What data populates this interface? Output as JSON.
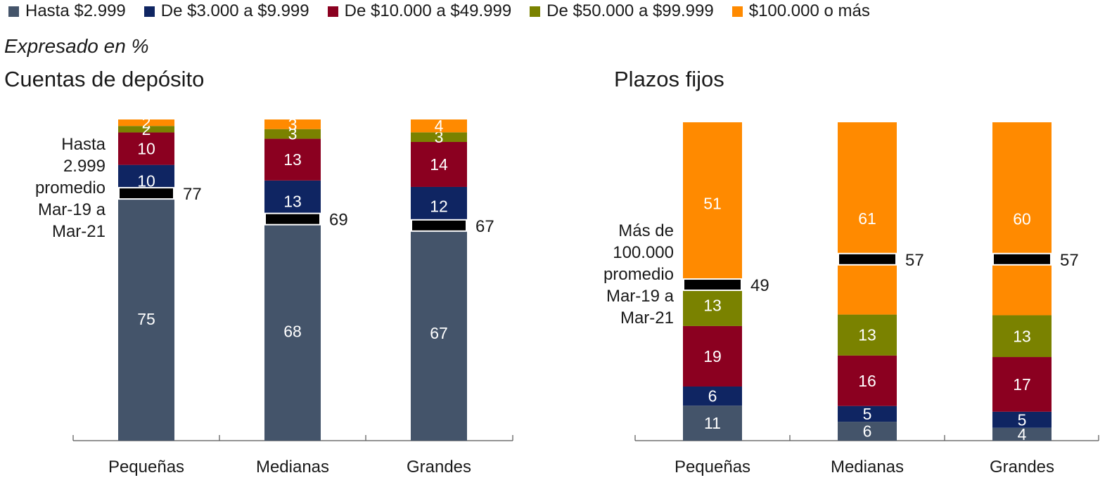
{
  "legend": [
    {
      "label": "Hasta $2.999",
      "color": "#44546a"
    },
    {
      "label": "De $3.000 a $9.999",
      "color": "#0f2562"
    },
    {
      "label": "De $10.000 a $49.999",
      "color": "#8b0020"
    },
    {
      "label": "De $50.000 a $99.999",
      "color": "#7a8200"
    },
    {
      "label": "$100.000 o más",
      "color": "#ff8a00"
    }
  ],
  "subtitle": "Expresado en %",
  "chart_data": [
    {
      "type": "bar",
      "stacked": true,
      "title": "Cuentas de depósito",
      "categories": [
        "Pequeñas",
        "Medianas",
        "Grandes"
      ],
      "series": [
        {
          "name": "Hasta $2.999",
          "values": [
            75,
            68,
            67
          ]
        },
        {
          "name": "De $3.000 a $9.999",
          "values": [
            10,
            13,
            12
          ]
        },
        {
          "name": "De $10.000 a $49.999",
          "values": [
            10,
            13,
            14
          ]
        },
        {
          "name": "De $50.000 a $99.999",
          "values": [
            2,
            3,
            3
          ]
        },
        {
          "name": "$100.000 o más",
          "values": [
            2,
            3,
            4
          ]
        }
      ],
      "average_marker": {
        "values": [
          77,
          69,
          67
        ],
        "label_lines": [
          "Hasta",
          "2.999",
          "promedio",
          "Mar-19 a",
          "Mar-21"
        ]
      },
      "ylim": [
        0,
        100
      ]
    },
    {
      "type": "bar",
      "stacked": true,
      "title": "Plazos fijos",
      "categories": [
        "Pequeñas",
        "Medianas",
        "Grandes"
      ],
      "series": [
        {
          "name": "Hasta $2.999",
          "values": [
            11,
            6,
            4
          ]
        },
        {
          "name": "De $3.000 a $9.999",
          "values": [
            6,
            5,
            5
          ]
        },
        {
          "name": "De $10.000 a $49.999",
          "values": [
            19,
            16,
            17
          ]
        },
        {
          "name": "De $50.000 a $99.999",
          "values": [
            13,
            13,
            13
          ]
        },
        {
          "name": "$100.000 o más",
          "values": [
            51,
            61,
            60
          ]
        }
      ],
      "average_marker": {
        "values": [
          49,
          57,
          57
        ],
        "label_lines": [
          "Más de",
          "100.000",
          "promedio",
          "Mar-19 a",
          "Mar-21"
        ]
      },
      "ylim": [
        0,
        100
      ]
    }
  ]
}
